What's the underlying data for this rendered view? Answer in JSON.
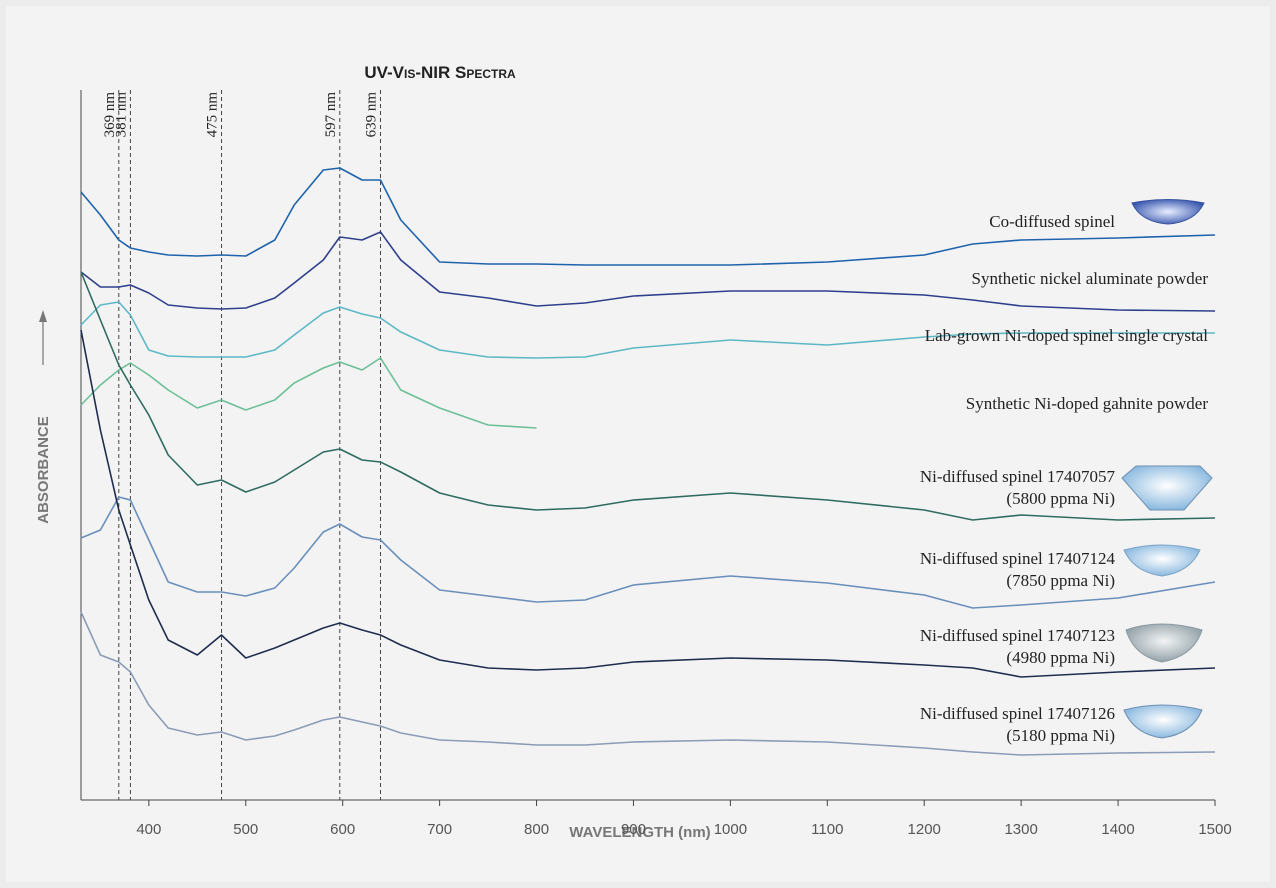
{
  "chart_data": {
    "type": "line",
    "title": "UV-Vis-NIR Spectra",
    "xlabel": "WAVELENGTH (nm)",
    "ylabel": "ABSORBANCE",
    "xlim": [
      330,
      1500
    ],
    "ylim": [
      0,
      710
    ],
    "xticks": [
      400,
      500,
      600,
      700,
      800,
      900,
      1000,
      1100,
      1200,
      1300,
      1400,
      1500
    ],
    "markers": [
      {
        "value": 369,
        "label": "369 nm"
      },
      {
        "value": 381,
        "label": "381 nm"
      },
      {
        "value": 475,
        "label": "475 nm"
      },
      {
        "value": 597,
        "label": "597 nm"
      },
      {
        "value": 639,
        "label": "639 nm"
      }
    ],
    "x": [
      330,
      350,
      369,
      381,
      400,
      420,
      450,
      475,
      500,
      530,
      550,
      580,
      597,
      620,
      639,
      660,
      700,
      750,
      800,
      850,
      900,
      1000,
      1100,
      1200,
      1250,
      1300,
      1400,
      1500
    ],
    "series": [
      {
        "name": "Co-diffused spinel",
        "color": "#1f62ad",
        "values": [
          608,
          585,
          560,
          552,
          548,
          545,
          544,
          545,
          544,
          560,
          595,
          630,
          632,
          620,
          620,
          580,
          538,
          536,
          536,
          535,
          535,
          535,
          538,
          545,
          556,
          560,
          562,
          565
        ]
      },
      {
        "name": "Synthetic nickel aluminate powder",
        "color": "#2f3f8c",
        "values": [
          528,
          513,
          513,
          515,
          507,
          495,
          492,
          491,
          492,
          502,
          517,
          540,
          563,
          560,
          568,
          540,
          508,
          502,
          494,
          497,
          504,
          509,
          509,
          505,
          500,
          494,
          490,
          489
        ]
      },
      {
        "name": "Lab-grown Ni-doped spinel single crystal",
        "color": "#5db8c6",
        "values": [
          475,
          495,
          498,
          485,
          450,
          444,
          443,
          443,
          443,
          450,
          465,
          487,
          493,
          486,
          482,
          468,
          450,
          443,
          442,
          443,
          452,
          460,
          455,
          463,
          466,
          467,
          467,
          467
        ]
      },
      {
        "name": "Synthetic Ni-doped gahnite powder",
        "color": "#6cbf98",
        "values": [
          395,
          415,
          430,
          437,
          425,
          410,
          392,
          400,
          390,
          400,
          417,
          432,
          438,
          430,
          442,
          410,
          392,
          375,
          372,
          null,
          null,
          null,
          null,
          null,
          null,
          null,
          null,
          null
        ]
      },
      {
        "name": "Ni-diffused spinel 17407057",
        "note": "(5800 ppma Ni)",
        "color": "#2f6b5f",
        "values": [
          528,
          480,
          435,
          415,
          385,
          345,
          315,
          320,
          308,
          318,
          330,
          348,
          351,
          340,
          338,
          328,
          307,
          295,
          290,
          292,
          300,
          307,
          300,
          290,
          280,
          285,
          280,
          282
        ]
      },
      {
        "name": "Ni-diffused spinel 17407124",
        "note": "(7850 ppma Ni)",
        "color": "#6a8fbb",
        "values": [
          262,
          270,
          303,
          300,
          260,
          218,
          208,
          208,
          204,
          212,
          232,
          268,
          276,
          263,
          260,
          240,
          210,
          204,
          198,
          200,
          215,
          224,
          217,
          205,
          192,
          195,
          202,
          218
        ]
      },
      {
        "name": "Ni-diffused spinel 17407123",
        "note": "(4980 ppma Ni)",
        "color": "#1e2d4f",
        "values": [
          470,
          370,
          290,
          255,
          200,
          160,
          145,
          165,
          142,
          152,
          160,
          172,
          177,
          170,
          165,
          155,
          140,
          132,
          130,
          132,
          138,
          142,
          140,
          135,
          132,
          123,
          128,
          132
        ]
      },
      {
        "name": "Ni-diffused spinel 17407126",
        "note": "(5180 ppma Ni)",
        "color": "#8a9cb6",
        "values": [
          188,
          145,
          138,
          128,
          95,
          72,
          65,
          68,
          60,
          64,
          70,
          80,
          83,
          78,
          74,
          67,
          60,
          58,
          55,
          55,
          58,
          60,
          58,
          52,
          48,
          45,
          47,
          48
        ]
      }
    ]
  }
}
